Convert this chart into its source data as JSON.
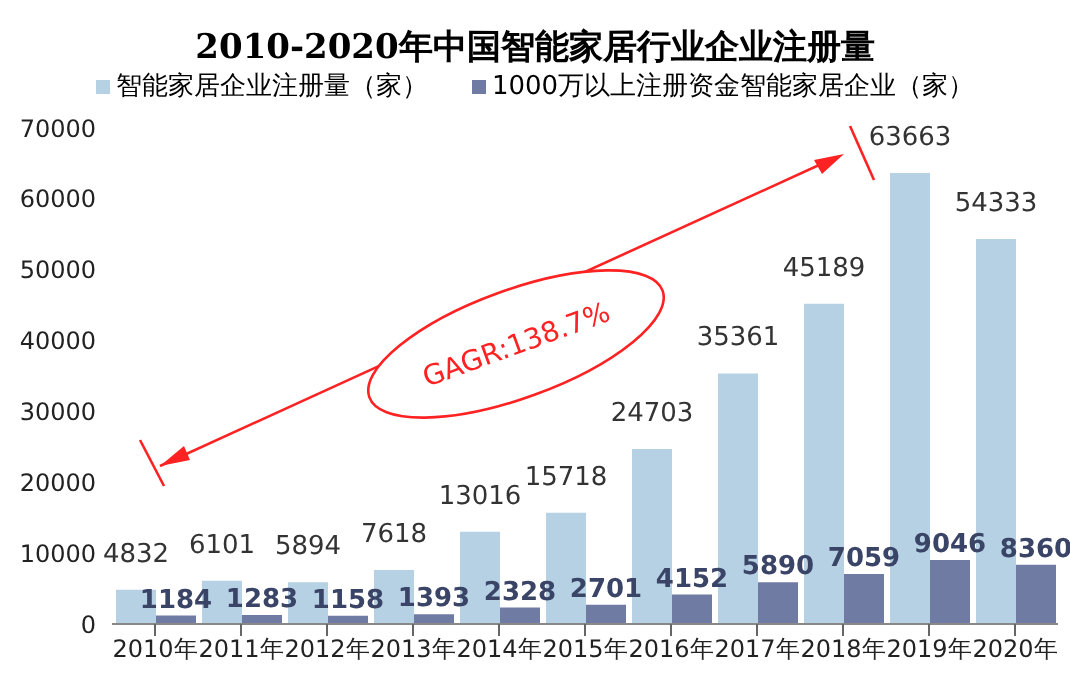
{
  "chart_data": {
    "type": "bar",
    "title": "2010-2020年中国智能家居行业企业注册量",
    "categories": [
      "2010年",
      "2011年",
      "2012年",
      "2013年",
      "2014年",
      "2015年",
      "2016年",
      "2017年",
      "2018年",
      "2019年",
      "2020年"
    ],
    "series": [
      {
        "name": "智能家居企业注册量（家）",
        "color": "#b6d1e4",
        "values": [
          4832,
          6101,
          5894,
          7618,
          13016,
          15718,
          24703,
          35361,
          45189,
          63663,
          54333
        ]
      },
      {
        "name": "1000万以上注册资金智能家居企业（家）",
        "color": "#6f7ba3",
        "values": [
          1184,
          1283,
          1158,
          1393,
          2328,
          2701,
          4152,
          5890,
          7059,
          9046,
          8360
        ]
      }
    ],
    "ylim": [
      0,
      70000
    ],
    "yticks": [
      0,
      10000,
      20000,
      30000,
      40000,
      50000,
      60000,
      70000
    ],
    "grid": false,
    "legend": "top",
    "data_labels": true,
    "annotations": [
      "GAGR:138.7%"
    ]
  }
}
